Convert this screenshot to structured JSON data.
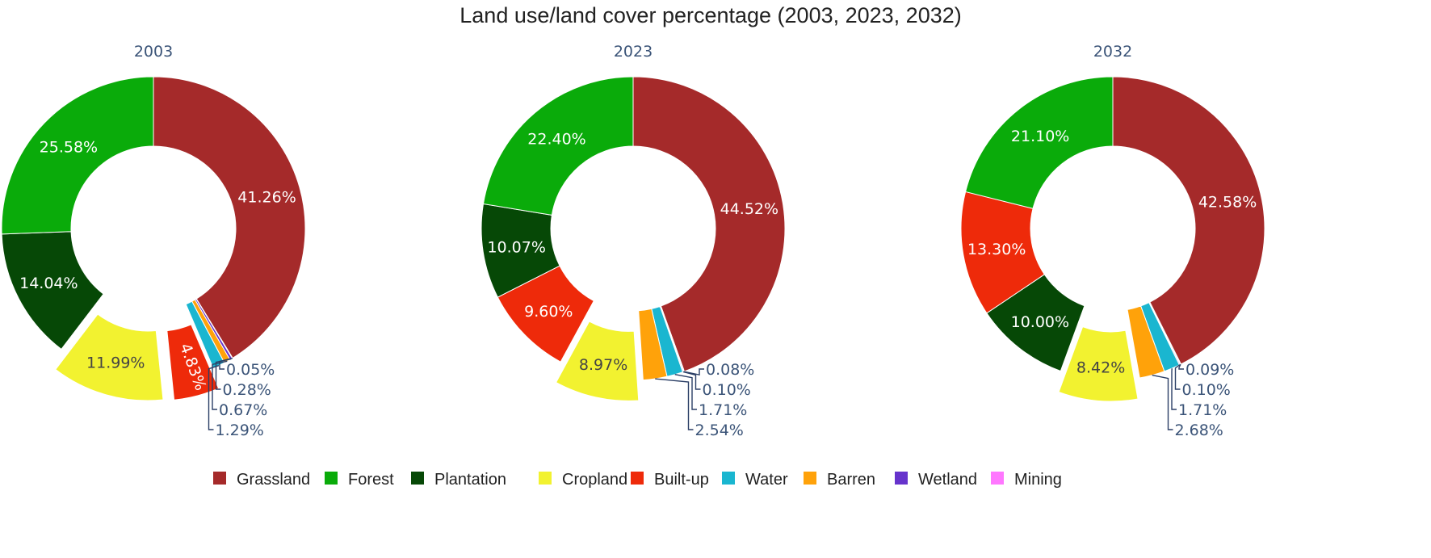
{
  "chart_data": {
    "type": "pie",
    "variant": "donut",
    "title": "Land use/land cover percentage (2003, 2023, 2032)",
    "categories": [
      "Grassland",
      "Forest",
      "Plantation",
      "Cropland",
      "Built-up",
      "Water",
      "Barren",
      "Wetland",
      "Mining"
    ],
    "colors": {
      "Grassland": "#a52a2a",
      "Forest": "#0aab0a",
      "Plantation": "#064806",
      "Cropland": "#f2f230",
      "Built-up": "#ee2a0a",
      "Water": "#1ab6d0",
      "Barren": "#ffa20a",
      "Wetland": "#6633cc",
      "Mining": "#ff77ff"
    },
    "legend": {
      "position": "bottom",
      "items": [
        "Grassland",
        "Forest",
        "Plantation",
        "Cropland",
        "Built-up",
        "Water",
        "Barren",
        "Wetland",
        "Mining"
      ]
    },
    "charts": [
      {
        "subtitle": "2003",
        "slices": [
          {
            "category": "Grassland",
            "value": 41.26,
            "label": "41.26%",
            "label_pos": "inside"
          },
          {
            "category": "Mining",
            "value": 0.05,
            "label": "0.05%",
            "label_pos": "outside"
          },
          {
            "category": "Wetland",
            "value": 0.28,
            "label": "0.28%",
            "label_pos": "outside"
          },
          {
            "category": "Barren",
            "value": 0.67,
            "label": "0.67%",
            "label_pos": "outside"
          },
          {
            "category": "Water",
            "value": 1.29,
            "label": "1.29%",
            "label_pos": "outside"
          },
          {
            "category": "Built-up",
            "value": 4.83,
            "label": "4.83%",
            "label_pos": "inside",
            "pulled": true
          },
          {
            "category": "Cropland",
            "value": 11.99,
            "label": "11.99%",
            "label_pos": "inside",
            "pulled": true
          },
          {
            "category": "Plantation",
            "value": 14.04,
            "label": "14.04%",
            "label_pos": "inside"
          },
          {
            "category": "Forest",
            "value": 25.58,
            "label": "25.58%",
            "label_pos": "inside"
          }
        ]
      },
      {
        "subtitle": "2023",
        "slices": [
          {
            "category": "Grassland",
            "value": 44.52,
            "label": "44.52%",
            "label_pos": "inside"
          },
          {
            "category": "Mining",
            "value": 0.08,
            "label": "0.08%",
            "label_pos": "outside"
          },
          {
            "category": "Wetland",
            "value": 0.1,
            "label": "0.10%",
            "label_pos": "outside"
          },
          {
            "category": "Water",
            "value": 1.71,
            "label": "1.71%",
            "label_pos": "outside"
          },
          {
            "category": "Barren",
            "value": 2.54,
            "label": "2.54%",
            "label_pos": "outside"
          },
          {
            "category": "Cropland",
            "value": 8.97,
            "label": "8.97%",
            "label_pos": "inside",
            "pulled": true
          },
          {
            "category": "Built-up",
            "value": 9.6,
            "label": "9.60%",
            "label_pos": "inside"
          },
          {
            "category": "Plantation",
            "value": 10.07,
            "label": "10.07%",
            "label_pos": "inside"
          },
          {
            "category": "Forest",
            "value": 22.4,
            "label": "22.40%",
            "label_pos": "inside"
          }
        ]
      },
      {
        "subtitle": "2032",
        "slices": [
          {
            "category": "Grassland",
            "value": 42.58,
            "label": "42.58%",
            "label_pos": "inside"
          },
          {
            "category": "Mining",
            "value": 0.09,
            "label": "0.09%",
            "label_pos": "outside"
          },
          {
            "category": "Wetland",
            "value": 0.1,
            "label": "0.10%",
            "label_pos": "outside"
          },
          {
            "category": "Water",
            "value": 1.71,
            "label": "1.71%",
            "label_pos": "outside"
          },
          {
            "category": "Barren",
            "value": 2.68,
            "label": "2.68%",
            "label_pos": "outside"
          },
          {
            "category": "Cropland",
            "value": 8.42,
            "label": "8.42%",
            "label_pos": "inside",
            "pulled": true
          },
          {
            "category": "Plantation",
            "value": 10.0,
            "label": "10.00%",
            "label_pos": "inside"
          },
          {
            "category": "Built-up",
            "value": 13.3,
            "label": "13.30%",
            "label_pos": "inside"
          },
          {
            "category": "Forest",
            "value": 21.1,
            "label": "21.10%",
            "label_pos": "inside"
          }
        ]
      }
    ]
  }
}
